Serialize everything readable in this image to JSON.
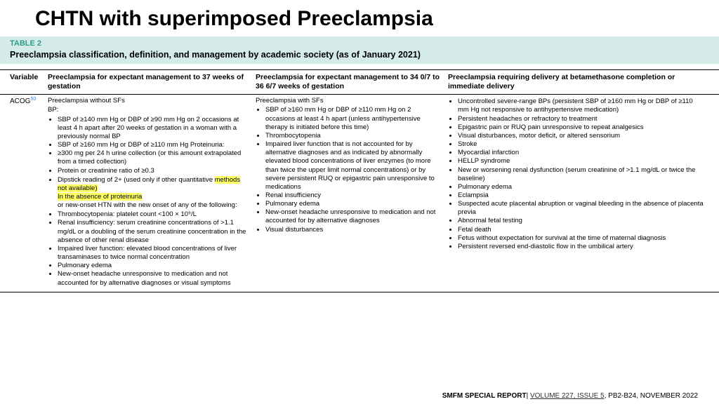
{
  "title": "CHTN with superimposed Preeclampsia",
  "table": {
    "label": "TABLE 2",
    "caption": "Preeclampsia classification, definition, and management by academic society (as of January 2021)",
    "head": {
      "var": "Variable",
      "colA": "Preeclampsia for expectant management to 37 weeks of gestation",
      "colB": "Preeclampsia for expectant management to 34 0/7 to 36 6/7 weeks of gestation",
      "colC": "Preeclampsia requiring delivery at betamethasone completion or immediate delivery"
    },
    "row": {
      "var": "ACOG",
      "varSup": "50",
      "a": {
        "lead1": "Preeclampsia without SFs",
        "lead2": "BP:",
        "top": [
          "SBP of ≥140 mm Hg or DBP of ≥90 mm Hg on 2 occasions at least 4 h apart after 20 weeks of gestation in a woman with a previously normal BP",
          "SBP of ≥160 mm Hg or DBP of ≥110 mm Hg Proteinuria:",
          "≥300 mg per 24 h urine collection (or this amount extrapolated from a timed collection)",
          "Protein or creatinine ratio of ≥0.3"
        ],
        "dip1": "Dipstick reading of 2+ (used only if other quantitative ",
        "dip2": "methods not available)",
        "hl": "In the absence of proteinuria",
        "mid": "or new-onset HTN with the new onset of any of the following:",
        "bottom": [
          "Thrombocytopenia: platelet count <100 × 10⁹/L",
          "Renal insufficiency: serum creatinine concentrations of >1.1 mg/dL or a doubling of the serum creatinine concentration in the absence of other renal disease",
          "Impaired liver function: elevated blood concentrations of liver transaminases to twice normal concentration",
          "Pulmonary edema",
          "New-onset headache unresponsive to medication and not accounted for by alternative diagnoses or visual symptoms"
        ]
      },
      "b": {
        "lead": "Preeclampsia with SFs",
        "items": [
          "SBP of ≥160 mm Hg or DBP of ≥110 mm Hg on 2 occasions at least 4 h apart (unless antihypertensive therapy is initiated before this time)",
          "Thrombocytopenia",
          "Impaired liver function that is not accounted for by alternative diagnoses and as indicated by abnormally elevated blood concentrations of liver enzymes (to more than twice the upper limit normal concentrations) or by severe persistent RUQ or epigastric pain unresponsive to medications",
          "Renal insufficiency",
          "Pulmonary edema",
          "New-onset headache unresponsive to medication and not accounted for by alternative diagnoses",
          "Visual disturbances"
        ]
      },
      "c": {
        "items": [
          "Uncontrolled severe-range BPs (persistent SBP of ≥160 mm Hg or DBP of ≥110 mm Hg not responsive to antihypertensive medication)",
          "Persistent headaches or refractory to treatment",
          "Epigastric pain or RUQ pain unresponsive to repeat analgesics",
          "Visual disturbances, motor deficit, or altered sensorium",
          "Stroke",
          "Myocardial infarction",
          "HELLP syndrome",
          "New or worsening renal dysfunction (serum creatinine of >1.1 mg/dL or twice the baseline)",
          "Pulmonary edema",
          "Eclampsia",
          "Suspected acute placental abruption or vaginal bleeding in the absence of placenta previa",
          "Abnormal fetal testing",
          "Fetal death",
          "Fetus without expectation for survival at the time of maternal diagnosis",
          "Persistent reversed end-diastolic flow in the umbilical artery"
        ]
      }
    }
  },
  "footer": {
    "bold": "SMFM SPECIAL REPORT",
    "sep": "| ",
    "link": "VOLUME 227, ISSUE 5",
    "tail": ", PB2-B24, NOVEMBER 2022"
  }
}
